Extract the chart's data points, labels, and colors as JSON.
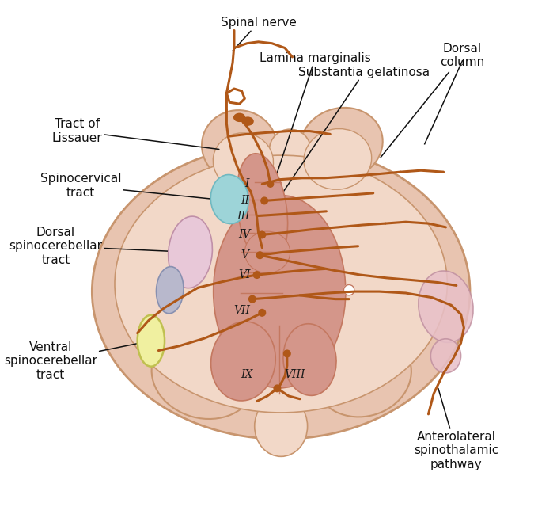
{
  "bg_color": "#ffffff",
  "outer_color": "#e8c4b0",
  "outer_edge": "#c8956e",
  "white_matter_color": "#f2d8c8",
  "gray_matter_color": "#d4968a",
  "lamina_color": "#c47860",
  "nerve_color": "#b05818",
  "nerve_lw": 2.2,
  "spinocervical_color": "#9dd4d8",
  "dorsal_spinocerebellar_color": "#e8c8d8",
  "blue_gray_tract": "#b8b8cc",
  "ventral_spinocerebellar_color": "#f0f0a0",
  "pink_right_color": "#e8c0c8",
  "ann_color": "#111111",
  "ann_fs": 11,
  "labels": {
    "spinal_nerve": "Spinal nerve",
    "lamina_marginalis": "Lamina marginalis",
    "substantia_gelatinosa": "Substantia gelatinosa",
    "dorsal_column": "Dorsal\ncolumn",
    "tract_of_lissauer": "Tract of\nLissauer",
    "spinocervical_tract": "Spinocervical\ntract",
    "dorsal_spinocerebellar": "Dorsal\nspinocerebellar\ntract",
    "ventral_spinocerebellar": "Ventral\nspinocerebellar\ntract",
    "anterolateral": "Anterolateral\nspinothalamic\npathway"
  }
}
